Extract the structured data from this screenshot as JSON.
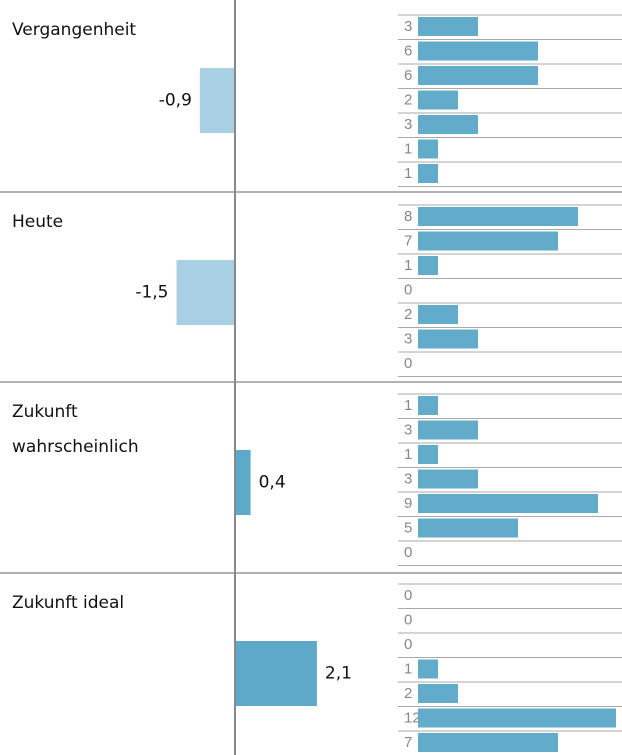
{
  "chart_data": {
    "type": "grouped-distribution",
    "groups": [
      {
        "label": [
          "Vergangenheit"
        ],
        "mean": -0.9,
        "mean_label": "-0,9",
        "counts": [
          3,
          6,
          6,
          2,
          3,
          1,
          1
        ]
      },
      {
        "label": [
          "Heute"
        ],
        "mean": -1.5,
        "mean_label": "-1,5",
        "counts": [
          8,
          7,
          1,
          0,
          2,
          3,
          0
        ]
      },
      {
        "label": [
          "Zukunft",
          "wahrscheinlich"
        ],
        "mean": 0.4,
        "mean_label": "0,4",
        "counts": [
          1,
          3,
          1,
          3,
          9,
          5,
          0
        ]
      },
      {
        "label": [
          "Zukunft ideal"
        ],
        "mean": 2.1,
        "mean_label": "2,1",
        "counts": [
          0,
          0,
          0,
          1,
          2,
          12,
          7
        ]
      }
    ],
    "negative_color": "#a9cfe4",
    "positive_color": "#5ea8c9",
    "count_color": "#62abcb"
  }
}
